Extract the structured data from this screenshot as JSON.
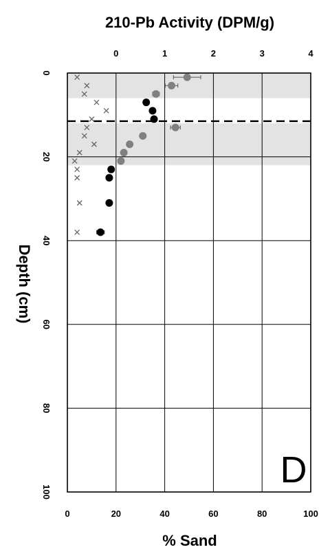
{
  "chart_data": {
    "type": "scatter",
    "panel_label": "D",
    "top_axis": {
      "title": "210-Pb Activity (DPM/g)",
      "range": [
        -1,
        4
      ],
      "ticks": [
        "0",
        "1",
        "2",
        "3",
        "4"
      ],
      "tick_values": [
        0,
        1,
        2,
        3,
        4
      ]
    },
    "bottom_axis": {
      "title": "% Sand",
      "range": [
        0,
        100
      ],
      "ticks": [
        "0",
        "20",
        "40",
        "60",
        "80",
        "100"
      ],
      "tick_values": [
        0,
        20,
        40,
        60,
        80,
        100
      ]
    },
    "y_axis": {
      "title": "Depth (cm)",
      "range": [
        0,
        100
      ],
      "inverted": true,
      "ticks": [
        "0",
        "20",
        "40",
        "60",
        "80",
        "100"
      ],
      "tick_values": [
        0,
        20,
        40,
        60,
        80,
        100
      ]
    },
    "grid": true,
    "shaded_bands": [
      [
        0,
        6
      ],
      [
        12,
        22
      ]
    ],
    "dashed_line_depth": 11.5,
    "series": [
      {
        "marker": "circle",
        "color": "#808080",
        "axis": "top",
        "points": [
          {
            "depth": 1,
            "value": 1.46,
            "err": 0.28
          },
          {
            "depth": 3,
            "value": 1.14,
            "err": 0.13
          },
          {
            "depth": 5,
            "value": 0.82,
            "err": 0.07
          },
          {
            "depth": 13,
            "value": 1.22,
            "err": 0.1
          },
          {
            "depth": 15,
            "value": 0.55,
            "err": 0.06
          },
          {
            "depth": 17,
            "value": 0.28,
            "err": 0.05
          },
          {
            "depth": 19,
            "value": 0.16,
            "err": 0.05
          },
          {
            "depth": 21,
            "value": 0.1,
            "err": 0.05
          }
        ]
      },
      {
        "marker": "circle",
        "color": "#000000",
        "axis": "top",
        "points": [
          {
            "depth": 7,
            "value": 0.62,
            "err": 0.05
          },
          {
            "depth": 9,
            "value": 0.75,
            "err": 0.05
          },
          {
            "depth": 11,
            "value": 0.78,
            "err": 0.05
          },
          {
            "depth": 23,
            "value": -0.1,
            "err": 0.05
          },
          {
            "depth": 25,
            "value": -0.14,
            "err": 0.05
          },
          {
            "depth": 31,
            "value": -0.14,
            "err": 0.04
          },
          {
            "depth": 38,
            "value": -0.32,
            "err": 0.08
          }
        ]
      },
      {
        "marker": "x",
        "color": "#666666",
        "axis": "bottom",
        "points": [
          {
            "depth": 1,
            "value": 4
          },
          {
            "depth": 3,
            "value": 8
          },
          {
            "depth": 5,
            "value": 7
          },
          {
            "depth": 7,
            "value": 12
          },
          {
            "depth": 9,
            "value": 16
          },
          {
            "depth": 11,
            "value": 10
          },
          {
            "depth": 13,
            "value": 8
          },
          {
            "depth": 15,
            "value": 7
          },
          {
            "depth": 17,
            "value": 11
          },
          {
            "depth": 19,
            "value": 5
          },
          {
            "depth": 21,
            "value": 3
          },
          {
            "depth": 23,
            "value": 4
          },
          {
            "depth": 25,
            "value": 4
          },
          {
            "depth": 31,
            "value": 5
          },
          {
            "depth": 38,
            "value": 4
          }
        ]
      }
    ]
  }
}
